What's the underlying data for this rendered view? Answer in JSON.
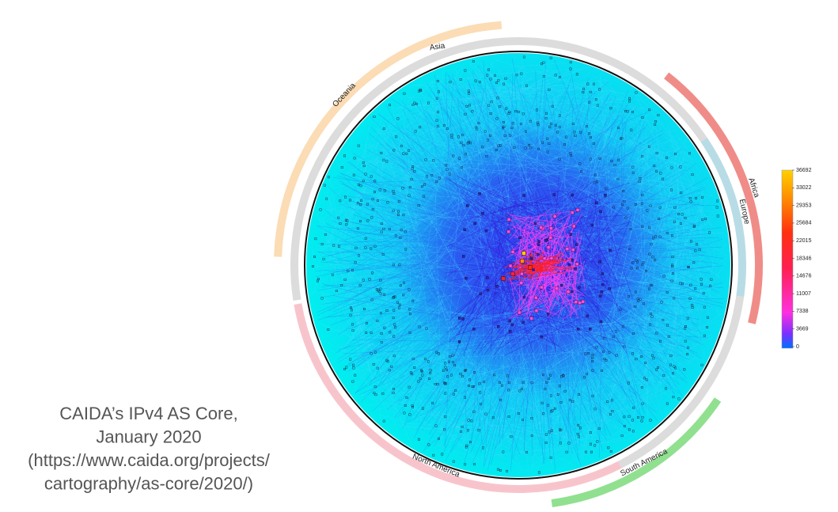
{
  "regions": {
    "asia": "Asia",
    "oceania": "Oceania",
    "africa": "Africa",
    "europe": "Europe",
    "north_america": "North America",
    "south_america": "South America"
  },
  "colorbar": {
    "ticks": [
      0,
      3669,
      7338,
      11007,
      14676,
      18346,
      22015,
      25684,
      29353,
      33022,
      36692
    ]
  },
  "caption": [
    "CAIDA’s IPv4 AS Core,",
    "January 2020",
    "(https://www.caida.org/projects/",
    "cartography/as-core/2020/)"
  ]
}
